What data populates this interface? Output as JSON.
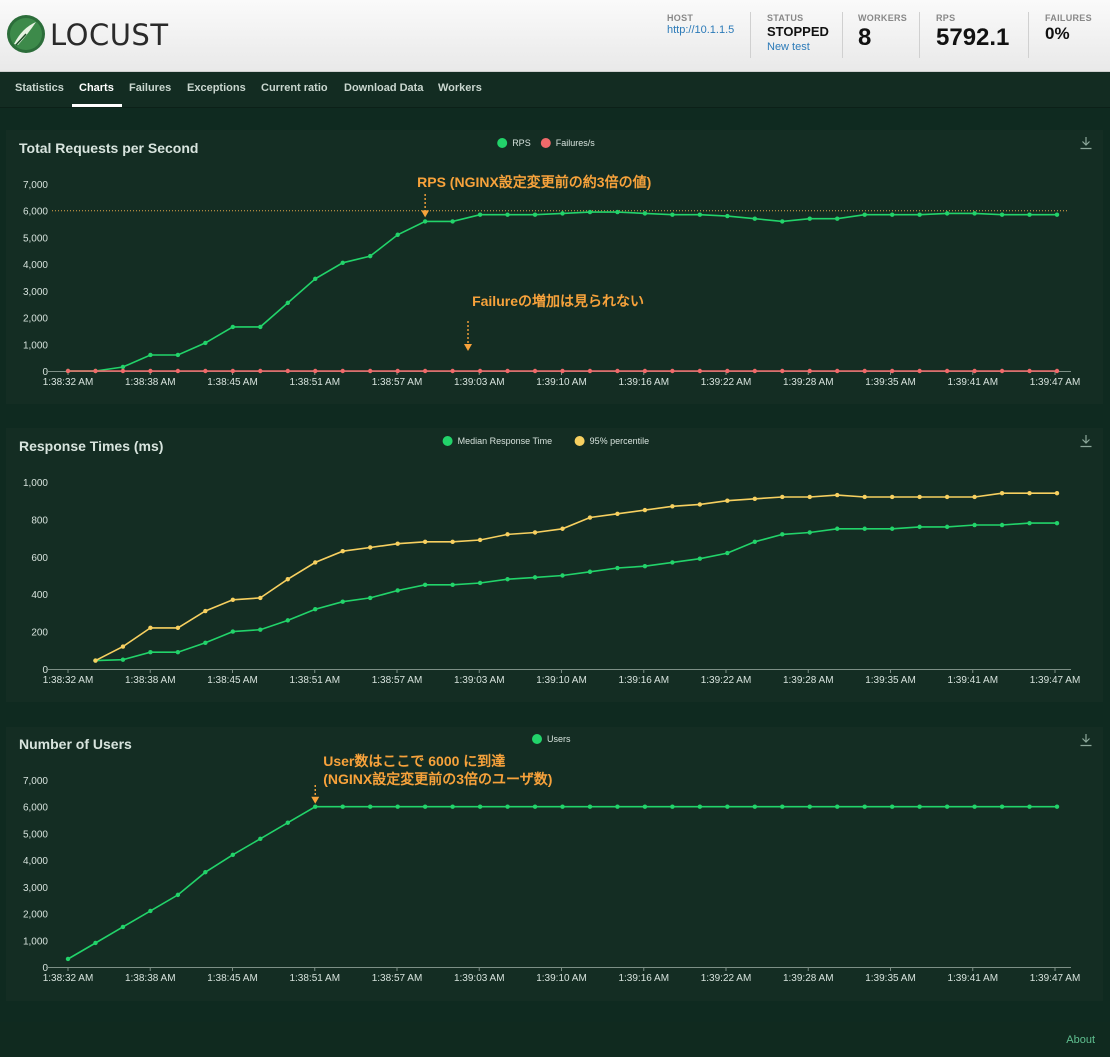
{
  "header": {
    "logo_text": "LOCUST",
    "host": {
      "label": "HOST",
      "value": "http://10.1.1.5"
    },
    "status": {
      "label": "STATUS",
      "value": "STOPPED",
      "new_test": "New test"
    },
    "workers": {
      "label": "WORKERS",
      "value": "8"
    },
    "rps": {
      "label": "RPS",
      "value": "5792.1"
    },
    "failures": {
      "label": "FAILURES",
      "value": "0%"
    }
  },
  "nav": {
    "tabs": [
      {
        "label": "Statistics",
        "active": false
      },
      {
        "label": "Charts",
        "active": true
      },
      {
        "label": "Failures",
        "active": false
      },
      {
        "label": "Exceptions",
        "active": false
      },
      {
        "label": "Current ratio",
        "active": false
      },
      {
        "label": "Download Data",
        "active": false
      },
      {
        "label": "Workers",
        "active": false
      }
    ]
  },
  "colors": {
    "green": "#22d36a",
    "red": "#f06a6a",
    "yellow": "#f7d060",
    "annotation": "#f7a23b",
    "panel_bg": "#142d23",
    "page_bg": "#0f2a20"
  },
  "chart_data": [
    {
      "type": "line",
      "title": "Total Requests per Second",
      "x_tick_labels": [
        "1:38:32 AM",
        "1:38:38 AM",
        "1:38:45 AM",
        "1:38:51 AM",
        "1:38:57 AM",
        "1:39:03 AM",
        "1:39:10 AM",
        "1:39:16 AM",
        "1:39:22 AM",
        "1:39:28 AM",
        "1:39:35 AM",
        "1:39:41 AM",
        "1:39:47 AM"
      ],
      "y_ticks": [
        "0",
        "1,000",
        "2,000",
        "3,000",
        "4,000",
        "5,000",
        "6,000",
        "7,000"
      ],
      "ylim": [
        0,
        7000
      ],
      "legend": "top-center",
      "series": [
        {
          "name": "RPS",
          "color": "#22d36a",
          "values": [
            0,
            0,
            150,
            600,
            600,
            1050,
            1650,
            1650,
            2550,
            3450,
            4050,
            4300,
            5100,
            5600,
            5600,
            5850,
            5850,
            5850,
            5900,
            5950,
            5950,
            5900,
            5850,
            5850,
            5800,
            5700,
            5600,
            5700,
            5700,
            5850,
            5850,
            5850,
            5900,
            5900,
            5850,
            5850,
            5850
          ]
        },
        {
          "name": "Failures/s",
          "color": "#f06a6a",
          "values": [
            0,
            0,
            0,
            0,
            0,
            0,
            0,
            0,
            0,
            0,
            0,
            0,
            0,
            0,
            0,
            0,
            0,
            0,
            0,
            0,
            0,
            0,
            0,
            0,
            0,
            0,
            0,
            0,
            0,
            0,
            0,
            0,
            0,
            0,
            0,
            0,
            0
          ]
        }
      ],
      "reference_line": 6000,
      "annotations": [
        {
          "text": "RPS (NGINX設定変更前の約3倍の値)",
          "point_index": 13
        },
        {
          "text": "Failureの増加は見られない",
          "point_index": 15
        }
      ]
    },
    {
      "type": "line",
      "title": "Response Times (ms)",
      "x_tick_labels": [
        "1:38:32 AM",
        "1:38:38 AM",
        "1:38:45 AM",
        "1:38:51 AM",
        "1:38:57 AM",
        "1:39:03 AM",
        "1:39:10 AM",
        "1:39:16 AM",
        "1:39:22 AM",
        "1:39:28 AM",
        "1:39:35 AM",
        "1:39:41 AM",
        "1:39:47 AM"
      ],
      "y_ticks": [
        "0",
        "200",
        "400",
        "600",
        "800",
        "1,000"
      ],
      "ylim": [
        0,
        1000
      ],
      "legend": "top-center",
      "series": [
        {
          "name": "Median Response Time",
          "color": "#22d36a",
          "values": [
            null,
            45,
            50,
            90,
            90,
            140,
            200,
            210,
            260,
            320,
            360,
            380,
            420,
            450,
            450,
            460,
            480,
            490,
            500,
            520,
            540,
            550,
            570,
            590,
            620,
            680,
            720,
            730,
            750,
            750,
            750,
            760,
            760,
            770,
            770,
            780,
            780
          ]
        },
        {
          "name": "95% percentile",
          "color": "#f7d060",
          "values": [
            null,
            45,
            120,
            220,
            220,
            310,
            370,
            380,
            480,
            570,
            630,
            650,
            670,
            680,
            680,
            690,
            720,
            730,
            750,
            810,
            830,
            850,
            870,
            880,
            900,
            910,
            920,
            920,
            930,
            920,
            920,
            920,
            920,
            920,
            940,
            940,
            940
          ]
        }
      ]
    },
    {
      "type": "line",
      "title": "Number of Users",
      "x_tick_labels": [
        "1:38:32 AM",
        "1:38:38 AM",
        "1:38:45 AM",
        "1:38:51 AM",
        "1:38:57 AM",
        "1:39:03 AM",
        "1:39:10 AM",
        "1:39:16 AM",
        "1:39:22 AM",
        "1:39:28 AM",
        "1:39:35 AM",
        "1:39:41 AM",
        "1:39:47 AM"
      ],
      "y_ticks": [
        "0",
        "1,000",
        "2,000",
        "3,000",
        "4,000",
        "5,000",
        "6,000",
        "7,000"
      ],
      "ylim": [
        0,
        7000
      ],
      "legend": "top-center",
      "series": [
        {
          "name": "Users",
          "color": "#22d36a",
          "values": [
            300,
            900,
            1500,
            2100,
            2700,
            3550,
            4200,
            4800,
            5400,
            6000,
            6000,
            6000,
            6000,
            6000,
            6000,
            6000,
            6000,
            6000,
            6000,
            6000,
            6000,
            6000,
            6000,
            6000,
            6000,
            6000,
            6000,
            6000,
            6000,
            6000,
            6000,
            6000,
            6000,
            6000,
            6000,
            6000,
            6000
          ]
        }
      ],
      "annotations": [
        {
          "text": "User数はここで 6000 に到達",
          "text2": "(NGINX設定変更前の3倍のユーザ数)",
          "point_index": 9
        }
      ]
    }
  ],
  "footer": {
    "about": "About"
  }
}
